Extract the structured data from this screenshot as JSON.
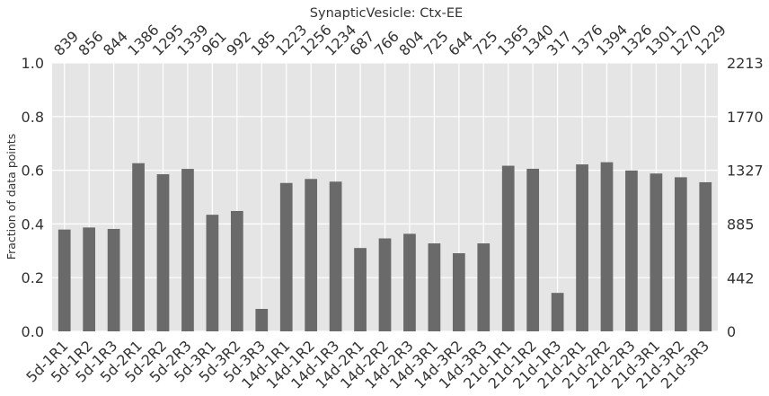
{
  "chart_data": {
    "type": "bar",
    "title": "SynapticVesicle: Ctx-EE",
    "xlabel": "",
    "ylabel": "Fraction of data points",
    "ylim": [
      0,
      1.0
    ],
    "y_ticks": [
      "0.0",
      "0.2",
      "0.4",
      "0.6",
      "0.8",
      "1.0"
    ],
    "right_axis_ticks": [
      "0",
      "442",
      "885",
      "1327",
      "1770",
      "2213"
    ],
    "max_count": 2213,
    "grid": true,
    "categories": [
      "5d-1R1",
      "5d-1R2",
      "5d-1R3",
      "5d-2R1",
      "5d-2R2",
      "5d-2R3",
      "5d-3R1",
      "5d-3R2",
      "5d-3R3",
      "14d-1R1",
      "14d-1R2",
      "14d-1R3",
      "14d-2R1",
      "14d-2R2",
      "14d-2R3",
      "14d-3R1",
      "14d-3R2",
      "14d-3R3",
      "21d-1R1",
      "21d-1R2",
      "21d-1R3",
      "21d-2R1",
      "21d-2R2",
      "21d-2R3",
      "21d-3R1",
      "21d-3R2",
      "21d-3R3"
    ],
    "counts": [
      839,
      856,
      844,
      1386,
      1295,
      1339,
      961,
      992,
      185,
      1223,
      1256,
      1234,
      687,
      766,
      804,
      725,
      644,
      725,
      1365,
      1340,
      317,
      1376,
      1394,
      1326,
      1301,
      1270,
      1229
    ],
    "colors": {
      "bar": "#6a6a6a",
      "plot_bg": "#e5e5e5",
      "grid": "#ffffff",
      "text": "#333333"
    }
  }
}
